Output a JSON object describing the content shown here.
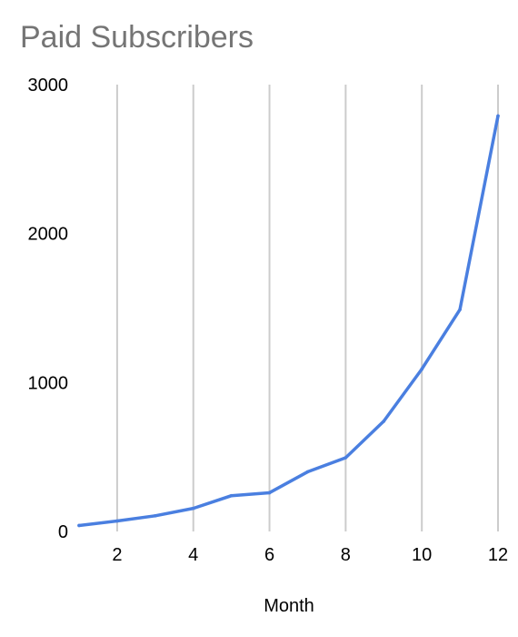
{
  "chart_data": {
    "type": "line",
    "title": "Paid Subscribers",
    "xlabel": "Month",
    "ylabel": "",
    "x": [
      1,
      2,
      3,
      4,
      5,
      6,
      7,
      8,
      9,
      10,
      11,
      12
    ],
    "series": [
      {
        "values": [
          40,
          70,
          105,
          155,
          240,
          260,
          400,
          495,
          740,
          1090,
          1490,
          2790
        ],
        "color": "#4a7fe0"
      }
    ],
    "xlim": [
      1,
      12
    ],
    "ylim": [
      0,
      3000
    ],
    "x_ticks": [
      {
        "value": 2,
        "label": "2"
      },
      {
        "value": 4,
        "label": "4"
      },
      {
        "value": 6,
        "label": "6"
      },
      {
        "value": 8,
        "label": "8"
      },
      {
        "value": 10,
        "label": "10"
      },
      {
        "value": 12,
        "label": "12"
      }
    ],
    "y_ticks": [
      {
        "value": 0,
        "label": "0"
      },
      {
        "value": 1000,
        "label": "1000"
      },
      {
        "value": 2000,
        "label": "2000"
      },
      {
        "value": 3000,
        "label": "3000"
      }
    ],
    "grid": {
      "vertical": true,
      "horizontal": false
    },
    "legend": "none"
  }
}
